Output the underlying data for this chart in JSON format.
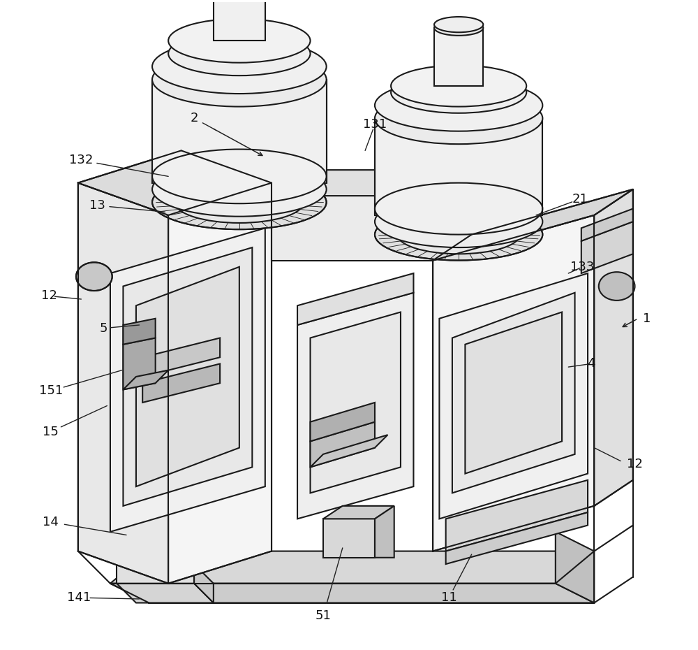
{
  "figure_width": 10.0,
  "figure_height": 9.3,
  "bg_color": "#ffffff",
  "line_color": "#1a1a1a",
  "line_width": 1.5
}
